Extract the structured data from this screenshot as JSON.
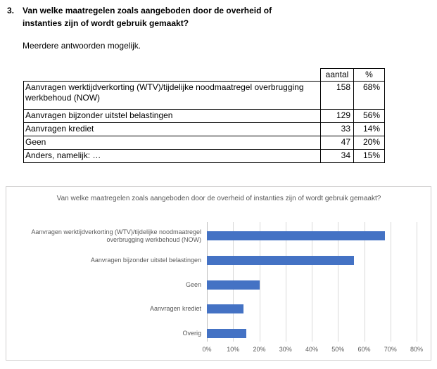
{
  "question": {
    "number": "3.",
    "text": "Van welke maatregelen zoals aangeboden door de overheid of instanties zijn of wordt gebruik gemaakt?",
    "subtext": "Meerdere antwoorden mogelijk."
  },
  "table": {
    "headers": [
      "aantal",
      "%"
    ],
    "rows": [
      {
        "label": "Aanvragen werktijdverkorting (WTV)/tijdelijke noodmaatregel overbrugging werkbehoud (NOW)",
        "aantal": "158",
        "pct": "68%"
      },
      {
        "label": "Aanvragen bijzonder uitstel belastingen",
        "aantal": "129",
        "pct": "56%"
      },
      {
        "label": "Aanvragen krediet",
        "aantal": "33",
        "pct": "14%"
      },
      {
        "label": "Geen",
        "aantal": "47",
        "pct": "20%"
      },
      {
        "label": "Anders, namelijk: …",
        "aantal": "34",
        "pct": "15%"
      }
    ]
  },
  "chart_data": {
    "type": "bar",
    "orientation": "horizontal",
    "title": "Van welke maatregelen zoals aangeboden door de overheid of instanties zijn of wordt gebruik gemaakt?",
    "categories": [
      "Aanvragen werktijdverkorting (WTV)/tijdelijke noodmaatregel overbrugging werkbehoud (NOW)",
      "Aanvragen bijzonder uitstel belastingen",
      "Geen",
      "Aanvragen krediet",
      "Overig"
    ],
    "values": [
      68,
      56,
      20,
      14,
      15
    ],
    "unit": "%",
    "xlabel": "",
    "ylabel": "",
    "xlim": [
      0,
      80
    ],
    "x_ticks": [
      "0%",
      "10%",
      "20%",
      "30%",
      "40%",
      "50%",
      "60%",
      "70%",
      "80%"
    ],
    "grid": true,
    "legend": false,
    "bar_color": "#4472c4",
    "gridline_color": "#d9d9d9",
    "text_color": "#595959"
  }
}
